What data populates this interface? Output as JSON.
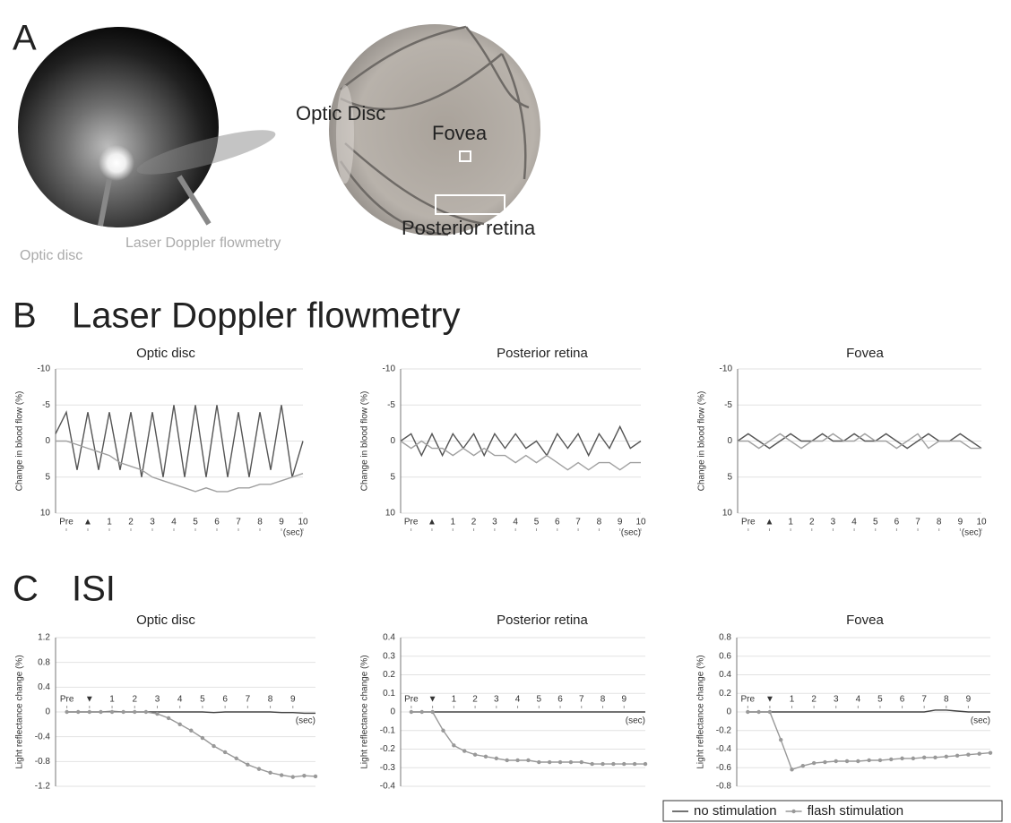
{
  "panel_a": {
    "letter": "A",
    "left_image_labels": [
      "Optic disc",
      "Laser Doppler flowmetry"
    ],
    "right_image_labels": [
      "Optic Disc",
      "Fovea",
      "Posterior retina"
    ]
  },
  "panel_b": {
    "letter": "B",
    "title": "Laser Doppler flowmetry"
  },
  "panel_c": {
    "letter": "C",
    "title": "ISI"
  },
  "chart_data": [
    {
      "type": "line",
      "title": "Optic disc",
      "y_label": "Change in blood flow (%)",
      "xunit": "(sec)",
      "x": [
        -1.5,
        -1,
        -0.5,
        0,
        0.5,
        1,
        1.5,
        2,
        2.5,
        3,
        3.5,
        4,
        4.5,
        5,
        5.5,
        6,
        6.5,
        7,
        7.5,
        8,
        8.5,
        9,
        9.5,
        10
      ],
      "xlim": [
        -1.5,
        10
      ],
      "xticks": [
        {
          "value": -1,
          "label": "Pre"
        },
        {
          "value": 0,
          "label": "▲"
        },
        1,
        2,
        3,
        4,
        5,
        6,
        7,
        8,
        9,
        10
      ],
      "ylim": [
        10,
        -10
      ],
      "yticks": [
        -10,
        -5,
        0,
        5,
        10
      ],
      "grid": true,
      "series": [
        {
          "color": "#555555",
          "values": [
            -1,
            -4,
            4,
            -4,
            4,
            -4,
            4,
            -4,
            5,
            -4,
            5,
            -5,
            5,
            -5,
            5,
            -5,
            5,
            -4,
            5,
            -4,
            4,
            -5,
            5,
            0
          ]
        },
        {
          "color": "#a0a0a0",
          "values": [
            0,
            0,
            0.5,
            1,
            1.5,
            2,
            3,
            3.5,
            4,
            5,
            5.5,
            6,
            6.5,
            7,
            6.5,
            7,
            7,
            6.5,
            6.5,
            6,
            6,
            5.5,
            5,
            4.5
          ]
        }
      ]
    },
    {
      "type": "line",
      "title": "Posterior retina",
      "y_label": "Change in blood flow (%)",
      "xunit": "(sec)",
      "x": [
        -1.5,
        -1,
        -0.5,
        0,
        0.5,
        1,
        1.5,
        2,
        2.5,
        3,
        3.5,
        4,
        4.5,
        5,
        5.5,
        6,
        6.5,
        7,
        7.5,
        8,
        8.5,
        9,
        9.5,
        10
      ],
      "xlim": [
        -1.5,
        10
      ],
      "xticks": [
        {
          "value": -1,
          "label": "Pre"
        },
        {
          "value": 0,
          "label": "▲"
        },
        1,
        2,
        3,
        4,
        5,
        6,
        7,
        8,
        9,
        10
      ],
      "ylim": [
        10,
        -10
      ],
      "yticks": [
        -10,
        -5,
        0,
        5,
        10
      ],
      "grid": true,
      "series": [
        {
          "color": "#555555",
          "values": [
            0,
            -1,
            2,
            -1,
            2,
            -1,
            1,
            -1,
            2,
            -1,
            1,
            -1,
            1,
            0,
            2,
            -1,
            1,
            -1,
            2,
            -1,
            1,
            -2,
            1,
            0
          ]
        },
        {
          "color": "#a0a0a0",
          "values": [
            0,
            1,
            0,
            1,
            1,
            2,
            1,
            2,
            1,
            2,
            2,
            3,
            2,
            3,
            2,
            3,
            4,
            3,
            4,
            3,
            3,
            4,
            3,
            3
          ]
        }
      ]
    },
    {
      "type": "line",
      "title": "Fovea",
      "y_label": "Change in blood flow (%)",
      "xunit": "(sec)",
      "x": [
        -1.5,
        -1,
        -0.5,
        0,
        0.5,
        1,
        1.5,
        2,
        2.5,
        3,
        3.5,
        4,
        4.5,
        5,
        5.5,
        6,
        6.5,
        7,
        7.5,
        8,
        8.5,
        9,
        9.5,
        10
      ],
      "xlim": [
        -1.5,
        10
      ],
      "xticks": [
        {
          "value": -1,
          "label": "Pre"
        },
        {
          "value": 0,
          "label": "▲"
        },
        1,
        2,
        3,
        4,
        5,
        6,
        7,
        8,
        9,
        10
      ],
      "ylim": [
        10,
        -10
      ],
      "yticks": [
        -10,
        -5,
        0,
        5,
        10
      ],
      "grid": true,
      "series": [
        {
          "color": "#555555",
          "values": [
            0,
            -1,
            0,
            1,
            0,
            -1,
            0,
            0,
            -1,
            0,
            0,
            -1,
            0,
            0,
            -1,
            0,
            1,
            0,
            -1,
            0,
            0,
            -1,
            0,
            1
          ]
        },
        {
          "color": "#a0a0a0",
          "values": [
            0,
            0,
            1,
            0,
            -1,
            0,
            1,
            0,
            0,
            -1,
            0,
            0,
            -1,
            0,
            0,
            1,
            0,
            -1,
            1,
            0,
            0,
            0,
            1,
            1
          ]
        }
      ]
    },
    {
      "type": "line",
      "title": "Optic disc",
      "y_label": "Light reflectance change (%)",
      "xunit": "(sec)",
      "x": [
        -1,
        -0.5,
        0,
        0.5,
        1,
        1.5,
        2,
        2.5,
        3,
        3.5,
        4,
        4.5,
        5,
        5.5,
        6,
        6.5,
        7,
        7.5,
        8,
        8.5,
        9,
        9.5,
        10
      ],
      "xlim": [
        -1.5,
        10
      ],
      "xticks": [
        {
          "value": -1,
          "label": "Pre"
        },
        {
          "value": 0,
          "label": "▼"
        },
        1,
        2,
        3,
        4,
        5,
        6,
        7,
        8,
        9
      ],
      "ylim": [
        -1.2,
        1.2
      ],
      "yticks": [
        -1.2,
        -0.8,
        -0.4,
        0,
        0.4,
        0.8,
        1.2
      ],
      "grid": true,
      "series": [
        {
          "color": "#444444",
          "values": [
            0,
            0,
            0,
            0,
            0.01,
            0,
            0,
            0,
            0,
            0,
            0,
            0,
            0,
            -0.01,
            0,
            0,
            0,
            0,
            0,
            -0.01,
            -0.01,
            -0.02,
            -0.02
          ]
        },
        {
          "color": "#999999",
          "marker": true,
          "values": [
            0,
            0,
            0,
            0,
            0,
            0,
            0,
            0,
            -0.03,
            -0.1,
            -0.2,
            -0.3,
            -0.42,
            -0.55,
            -0.65,
            -0.75,
            -0.85,
            -0.92,
            -0.98,
            -1.02,
            -1.05,
            -1.03,
            -1.04
          ]
        }
      ]
    },
    {
      "type": "line",
      "title": "Posterior retina",
      "y_label": "Light reflectance change (%)",
      "xunit": "(sec)",
      "x": [
        -1,
        -0.5,
        0,
        0.5,
        1,
        1.5,
        2,
        2.5,
        3,
        3.5,
        4,
        4.5,
        5,
        5.5,
        6,
        6.5,
        7,
        7.5,
        8,
        8.5,
        9,
        9.5,
        10
      ],
      "xlim": [
        -1.5,
        10
      ],
      "xticks": [
        {
          "value": -1,
          "label": "Pre"
        },
        {
          "value": 0,
          "label": "▼"
        },
        1,
        2,
        3,
        4,
        5,
        6,
        7,
        8,
        9
      ],
      "ylim": [
        -0.4,
        0.4
      ],
      "yticks": [
        -0.4,
        -0.3,
        -0.2,
        -0.1,
        0,
        0.1,
        0.2,
        0.3,
        0.4
      ],
      "grid": true,
      "series": [
        {
          "name": "no stimulation",
          "color": "#444444",
          "values": [
            0,
            0,
            0,
            0,
            0,
            0,
            0,
            0,
            0,
            0,
            0,
            0,
            0,
            0,
            0,
            0,
            0,
            0,
            0,
            0,
            0,
            0,
            0
          ]
        },
        {
          "name": "flash stimulation",
          "color": "#999999",
          "marker": true,
          "values": [
            0,
            0,
            0,
            -0.1,
            -0.18,
            -0.21,
            -0.23,
            -0.24,
            -0.25,
            -0.26,
            -0.26,
            -0.26,
            -0.27,
            -0.27,
            -0.27,
            -0.27,
            -0.27,
            -0.28,
            -0.28,
            -0.28,
            -0.28,
            -0.28,
            -0.28
          ]
        }
      ]
    },
    {
      "type": "line",
      "title": "Fovea",
      "y_label": "Light reflectance change (%)",
      "xunit": "(sec)",
      "x": [
        -1,
        -0.5,
        0,
        0.5,
        1,
        1.5,
        2,
        2.5,
        3,
        3.5,
        4,
        4.5,
        5,
        5.5,
        6,
        6.5,
        7,
        7.5,
        8,
        8.5,
        9,
        9.5,
        10
      ],
      "xlim": [
        -1.5,
        10
      ],
      "xticks": [
        {
          "value": -1,
          "label": "Pre"
        },
        {
          "value": 0,
          "label": "▼"
        },
        1,
        2,
        3,
        4,
        5,
        6,
        7,
        8,
        9
      ],
      "ylim": [
        -0.8,
        0.8
      ],
      "yticks": [
        -0.8,
        -0.6,
        -0.4,
        -0.2,
        0,
        0.2,
        0.4,
        0.6,
        0.8
      ],
      "grid": true,
      "series": [
        {
          "color": "#444444",
          "values": [
            0,
            0,
            0,
            0,
            0,
            0,
            0,
            0,
            0,
            0,
            0,
            0,
            0,
            0,
            0,
            0,
            0,
            0.02,
            0.02,
            0.01,
            0,
            0,
            0
          ]
        },
        {
          "color": "#999999",
          "marker": true,
          "values": [
            0,
            0,
            0,
            -0.3,
            -0.62,
            -0.58,
            -0.55,
            -0.54,
            -0.53,
            -0.53,
            -0.53,
            -0.52,
            -0.52,
            -0.51,
            -0.5,
            -0.5,
            -0.49,
            -0.49,
            -0.48,
            -0.47,
            -0.46,
            -0.45,
            -0.44
          ]
        }
      ]
    }
  ]
}
